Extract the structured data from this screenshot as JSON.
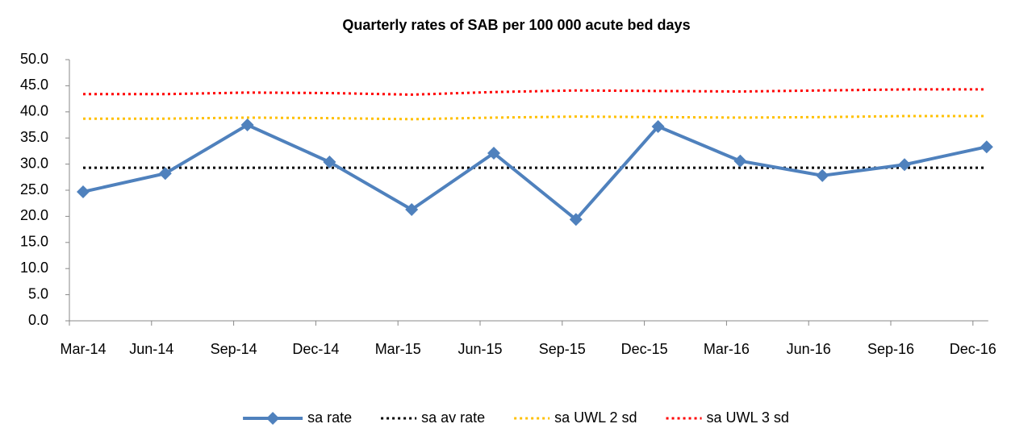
{
  "chart_data": {
    "type": "line",
    "title": "Quarterly rates of SAB per 100 000 acute bed days",
    "categories": [
      "Mar-14",
      "Jun-14",
      "Sep-14",
      "Dec-14",
      "Mar-15",
      "Jun-15",
      "Sep-15",
      "Dec-15",
      "Mar-16",
      "Jun-16",
      "Sep-16",
      "Dec-16"
    ],
    "series": [
      {
        "name": "sa rate",
        "color": "#4f81bd",
        "line_style": "solid",
        "marker": "diamond",
        "values": [
          24.7,
          28.2,
          37.5,
          30.4,
          21.3,
          32.1,
          19.4,
          37.2,
          30.6,
          27.8,
          29.9,
          33.3
        ]
      },
      {
        "name": "sa av rate",
        "color": "#000000",
        "line_style": "dotted",
        "values": [
          29.3,
          29.3,
          29.3,
          29.3,
          29.3,
          29.3,
          29.3,
          29.3,
          29.3,
          29.3,
          29.3,
          29.3
        ]
      },
      {
        "name": "sa UWL 2 sd",
        "color": "#ffc000",
        "line_style": "dotted",
        "values": [
          38.7,
          38.7,
          38.9,
          38.8,
          38.6,
          38.9,
          39.1,
          39.0,
          38.9,
          39.0,
          39.2,
          39.2
        ]
      },
      {
        "name": "sa UWL 3 sd",
        "color": "#ff0000",
        "line_style": "dotted",
        "values": [
          43.4,
          43.4,
          43.7,
          43.6,
          43.3,
          43.8,
          44.1,
          44.0,
          43.9,
          44.1,
          44.3,
          44.3
        ]
      }
    ],
    "ylim": [
      0,
      50
    ],
    "yticks": [
      {
        "value": 0,
        "label": "0.0"
      },
      {
        "value": 5,
        "label": "5.0"
      },
      {
        "value": 10,
        "label": "10.0"
      },
      {
        "value": 15,
        "label": "15.0"
      },
      {
        "value": 20,
        "label": "20.0"
      },
      {
        "value": 25,
        "label": "25.0"
      },
      {
        "value": 30,
        "label": "30.0"
      },
      {
        "value": 35,
        "label": "35.0"
      },
      {
        "value": 40,
        "label": "40.0"
      },
      {
        "value": 45,
        "label": "45.0"
      },
      {
        "value": 50,
        "label": "50.0"
      }
    ],
    "grid": false,
    "legend": "bottom"
  }
}
